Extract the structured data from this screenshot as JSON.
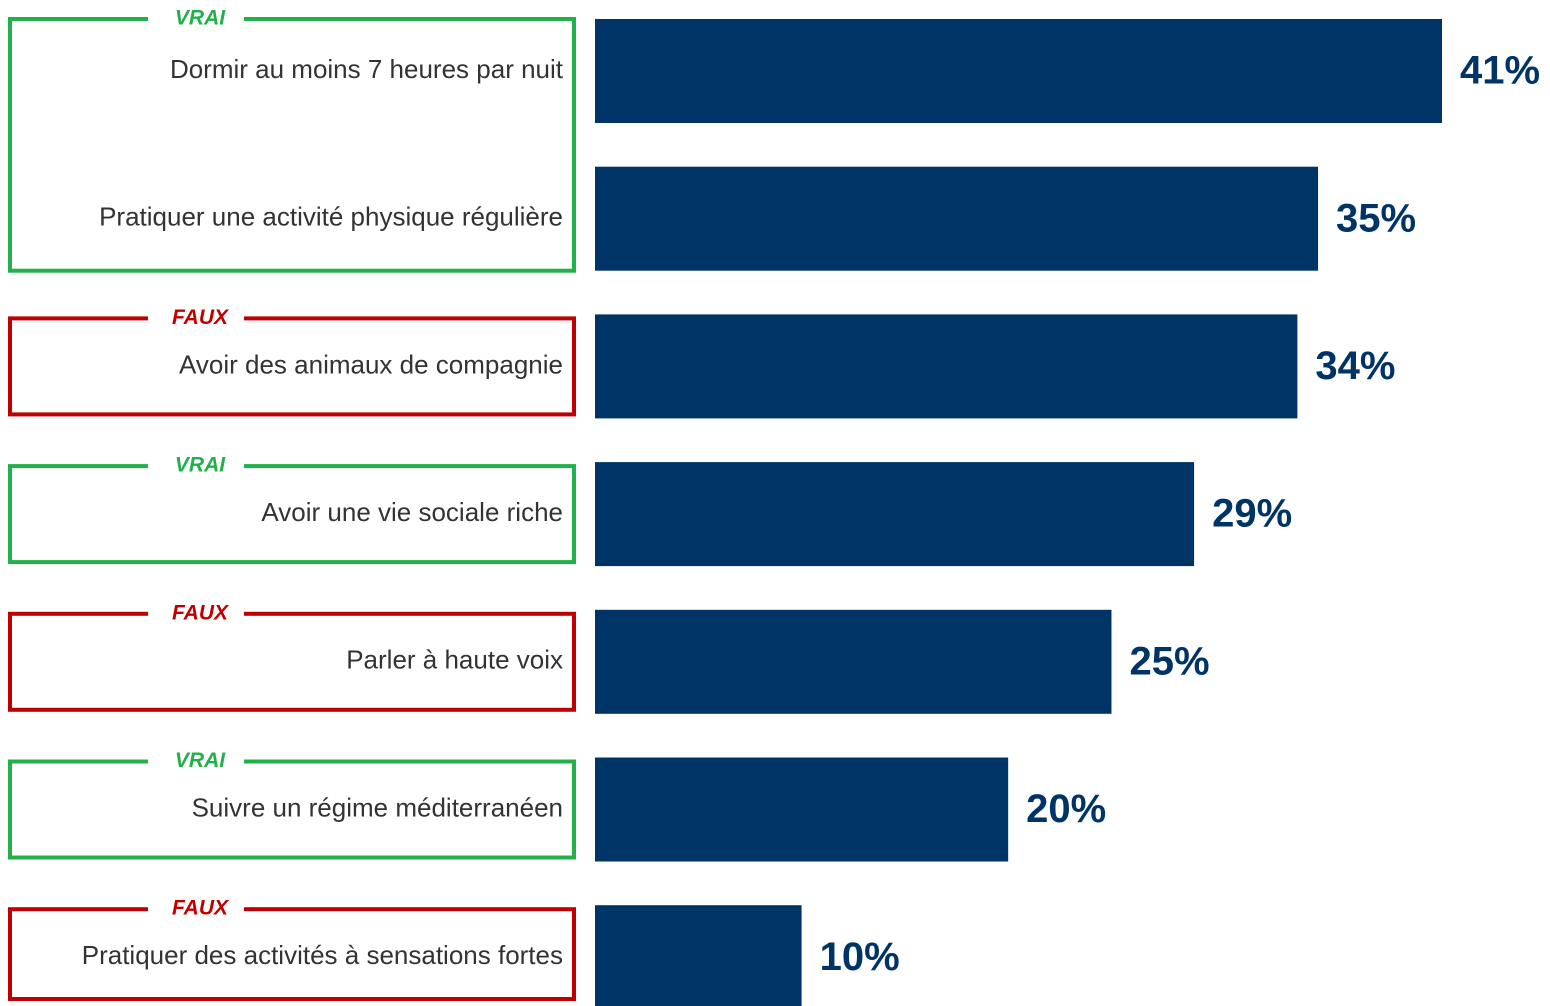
{
  "chart_data": {
    "type": "bar",
    "color": "#003366",
    "groups": [
      {
        "label": "VRAI",
        "color": "#22b04b",
        "categories": [
          "Dormir au moins 7 heures par nuit",
          "Pratiquer une activité physique régulière"
        ],
        "values": [
          41,
          35
        ],
        "value_labels": [
          "41%",
          "35%"
        ]
      },
      {
        "label": "FAUX",
        "color": "#c00000",
        "categories": [
          "Avoir des animaux de compagnie"
        ],
        "values": [
          34
        ],
        "value_labels": [
          "34%"
        ]
      },
      {
        "label": "VRAI",
        "color": "#22b04b",
        "categories": [
          "Avoir une vie sociale riche"
        ],
        "values": [
          29
        ],
        "value_labels": [
          "29%"
        ]
      },
      {
        "label": "FAUX",
        "color": "#c00000",
        "categories": [
          "Parler à haute voix"
        ],
        "values": [
          25
        ],
        "value_labels": [
          "25%"
        ]
      },
      {
        "label": "VRAI",
        "color": "#22b04b",
        "categories": [
          "Suivre un régime méditerranéen"
        ],
        "values": [
          20
        ],
        "value_labels": [
          "20%"
        ]
      },
      {
        "label": "FAUX",
        "color": "#c00000",
        "categories": [
          "Pratiquer des activités à sensations fortes"
        ],
        "values": [
          10
        ],
        "value_labels": [
          "10%"
        ]
      }
    ]
  }
}
